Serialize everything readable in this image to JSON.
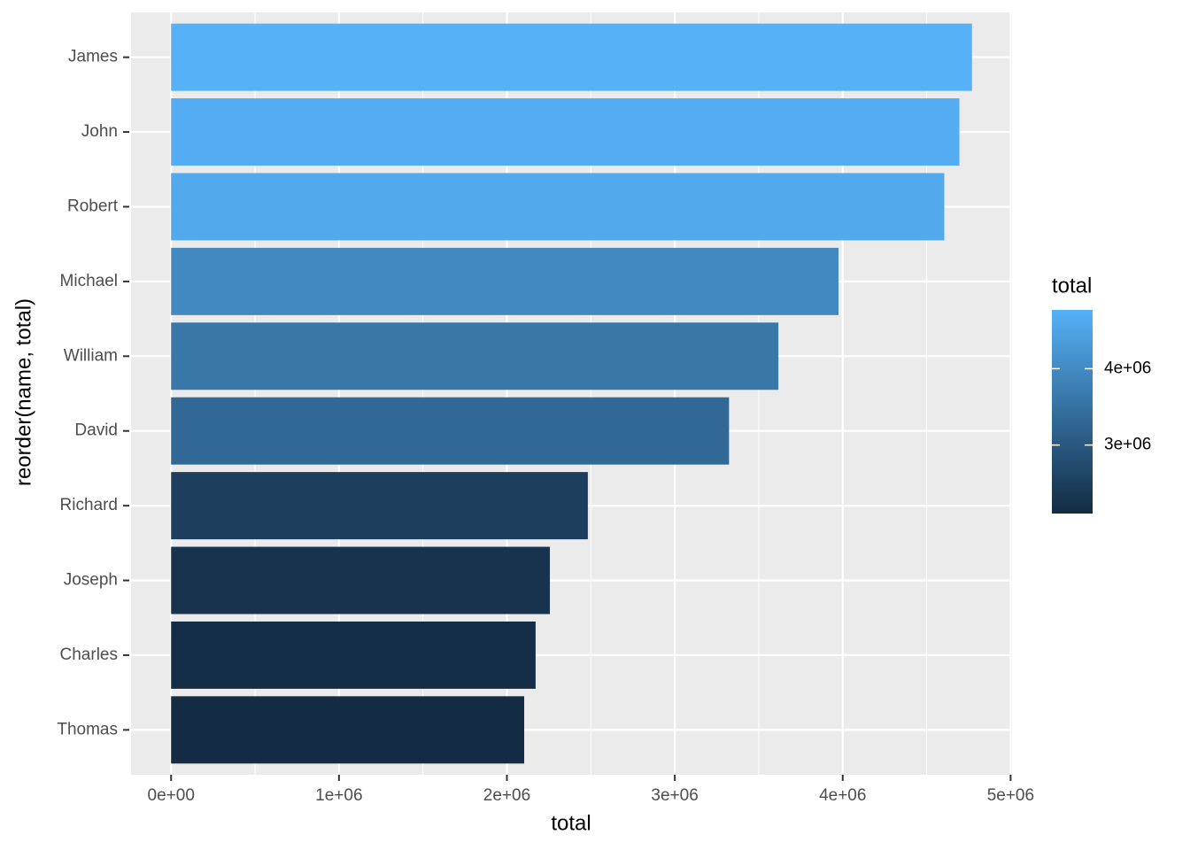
{
  "chart_data": {
    "type": "bar",
    "orientation": "horizontal",
    "x_label": "total",
    "y_label": "reorder(name, total)",
    "categories": [
      "James",
      "John",
      "Robert",
      "Michael",
      "William",
      "David",
      "Richard",
      "Joseph",
      "Charles",
      "Thomas"
    ],
    "values": [
      4770000,
      4695000,
      4605000,
      3975000,
      3617000,
      3323000,
      2482000,
      2256000,
      2171000,
      2103000
    ],
    "xlim": [
      -238500,
      5008500
    ],
    "xticks": [
      {
        "value": 0,
        "label": "0e+00"
      },
      {
        "value": 1000000,
        "label": "1e+06"
      },
      {
        "value": 2000000,
        "label": "2e+06"
      },
      {
        "value": 3000000,
        "label": "3e+06"
      },
      {
        "value": 4000000,
        "label": "4e+06"
      },
      {
        "value": 5000000,
        "label": "5e+06"
      }
    ],
    "grid": true,
    "color_scale": [
      "#132B43",
      "#56B1F7"
    ],
    "legend_title": "total",
    "legend_ticks": [
      {
        "value": 3000000,
        "label": "3e+06"
      },
      {
        "value": 4000000,
        "label": "4e+06"
      }
    ]
  }
}
